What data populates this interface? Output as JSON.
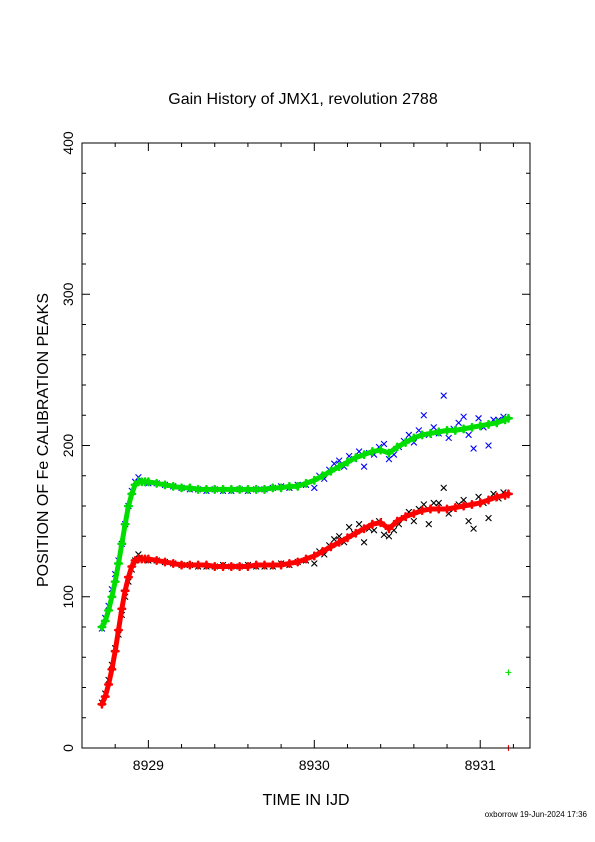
{
  "chart_data": {
    "type": "scatter",
    "title": "Gain History of JMX1, revolution 2788",
    "xlabel": "TIME IN IJD",
    "ylabel": "POSITION OF Fe CALIBRATION PEAKS",
    "xlim": [
      8928.6,
      8931.3
    ],
    "ylim": [
      0,
      400
    ],
    "x_ticks": [
      "8929",
      "8930",
      "8931"
    ],
    "y_ticks": [
      "0",
      "100",
      "200",
      "300",
      "400"
    ],
    "grid": false,
    "series": [
      {
        "marker": "x",
        "color": "#0000ff",
        "x": [
          8928.72,
          8928.74,
          8928.76,
          8928.78,
          8928.8,
          8928.82,
          8928.84,
          8928.86,
          8928.88,
          8928.9,
          8928.92,
          8928.94,
          8928.96,
          8929.0,
          8929.05,
          8929.1,
          8929.15,
          8929.2,
          8929.25,
          8929.3,
          8929.35,
          8929.4,
          8929.45,
          8929.5,
          8929.55,
          8929.6,
          8929.65,
          8929.7,
          8929.75,
          8929.8,
          8929.85,
          8929.9,
          8929.95,
          8930.0,
          8930.03,
          8930.06,
          8930.09,
          8930.12,
          8930.15,
          8930.18,
          8930.21,
          8930.24,
          8930.27,
          8930.3,
          8930.33,
          8930.36,
          8930.39,
          8930.42,
          8930.45,
          8930.48,
          8930.51,
          8930.54,
          8930.57,
          8930.6,
          8930.63,
          8930.66,
          8930.69,
          8930.72,
          8930.75,
          8930.78,
          8930.81,
          8930.84,
          8930.87,
          8930.9,
          8930.93,
          8930.96,
          8930.99,
          8931.02,
          8931.05,
          8931.08,
          8931.11,
          8931.14
        ],
        "y": [
          79,
          86,
          94,
          105,
          115,
          124,
          135,
          148,
          160,
          170,
          176,
          179,
          176,
          175,
          175,
          174,
          173,
          172,
          171,
          171,
          170,
          171,
          170,
          170,
          171,
          170,
          171,
          171,
          172,
          173,
          172,
          174,
          174,
          172,
          180,
          178,
          184,
          188,
          190,
          186,
          193,
          191,
          196,
          186,
          195,
          194,
          199,
          201,
          191,
          194,
          199,
          203,
          207,
          202,
          210,
          220,
          207,
          212,
          208,
          233,
          205,
          211,
          215,
          219,
          207,
          198,
          218,
          212,
          200,
          217,
          217,
          219
        ]
      },
      {
        "marker": "+",
        "color": "#00dd00",
        "x": [
          8928.72,
          8928.74,
          8928.76,
          8928.78,
          8928.8,
          8928.82,
          8928.84,
          8928.86,
          8928.88,
          8928.9,
          8928.92,
          8928.94,
          8928.96,
          8928.98,
          8929.0,
          8929.05,
          8929.1,
          8929.15,
          8929.2,
          8929.25,
          8929.3,
          8929.35,
          8929.4,
          8929.45,
          8929.5,
          8929.55,
          8929.6,
          8929.65,
          8929.7,
          8929.75,
          8929.8,
          8929.85,
          8929.9,
          8929.95,
          8930.0,
          8930.05,
          8930.1,
          8930.15,
          8930.2,
          8930.25,
          8930.3,
          8930.35,
          8930.4,
          8930.45,
          8930.5,
          8930.55,
          8930.6,
          8930.65,
          8930.7,
          8930.75,
          8930.8,
          8930.85,
          8930.9,
          8930.95,
          8931.0,
          8931.05,
          8931.1,
          8931.15,
          8931.17
        ],
        "y": [
          80,
          84,
          91,
          100,
          110,
          122,
          135,
          148,
          160,
          168,
          174,
          176,
          176,
          176,
          176,
          175,
          174,
          173,
          172,
          172,
          171,
          171,
          171,
          171,
          171,
          171,
          171,
          171,
          171,
          172,
          172,
          173,
          173,
          175,
          177,
          180,
          183,
          186,
          189,
          192,
          194,
          196,
          197,
          195,
          199,
          202,
          205,
          207,
          208,
          209,
          210,
          210,
          211,
          212,
          213,
          214,
          215,
          217,
          218
        ]
      },
      {
        "marker": "x",
        "color": "#000000",
        "x": [
          8928.72,
          8928.74,
          8928.76,
          8928.78,
          8928.8,
          8928.82,
          8928.84,
          8928.86,
          8928.88,
          8928.9,
          8928.92,
          8928.94,
          8928.96,
          8929.0,
          8929.05,
          8929.1,
          8929.15,
          8929.2,
          8929.25,
          8929.3,
          8929.35,
          8929.4,
          8929.45,
          8929.5,
          8929.55,
          8929.6,
          8929.65,
          8929.7,
          8929.75,
          8929.8,
          8929.85,
          8929.9,
          8929.95,
          8930.0,
          8930.03,
          8930.06,
          8930.09,
          8930.12,
          8930.15,
          8930.18,
          8930.21,
          8930.24,
          8930.27,
          8930.3,
          8930.33,
          8930.36,
          8930.39,
          8930.42,
          8930.45,
          8930.48,
          8930.51,
          8930.54,
          8930.57,
          8930.6,
          8930.63,
          8930.66,
          8930.69,
          8930.72,
          8930.75,
          8930.78,
          8930.81,
          8930.84,
          8930.87,
          8930.9,
          8930.93,
          8930.96,
          8930.99,
          8931.02,
          8931.05,
          8931.08,
          8931.11,
          8931.14
        ],
        "y": [
          30,
          36,
          45,
          55,
          66,
          75,
          88,
          100,
          110,
          118,
          124,
          128,
          125,
          124,
          124,
          123,
          122,
          121,
          121,
          120,
          120,
          120,
          121,
          120,
          120,
          121,
          120,
          120,
          120,
          122,
          121,
          123,
          124,
          122,
          130,
          128,
          134,
          138,
          140,
          136,
          146,
          142,
          148,
          136,
          145,
          144,
          150,
          141,
          140,
          144,
          148,
          152,
          156,
          150,
          158,
          161,
          148,
          162,
          162,
          172,
          155,
          158,
          161,
          164,
          150,
          145,
          166,
          162,
          152,
          168,
          165,
          169
        ]
      },
      {
        "marker": "+",
        "color": "#ff0000",
        "x": [
          8928.72,
          8928.74,
          8928.76,
          8928.78,
          8928.8,
          8928.82,
          8928.84,
          8928.86,
          8928.88,
          8928.9,
          8928.92,
          8928.94,
          8928.96,
          8928.98,
          8929.0,
          8929.05,
          8929.1,
          8929.15,
          8929.2,
          8929.25,
          8929.3,
          8929.35,
          8929.4,
          8929.45,
          8929.5,
          8929.55,
          8929.6,
          8929.65,
          8929.7,
          8929.75,
          8929.8,
          8929.85,
          8929.9,
          8929.95,
          8930.0,
          8930.05,
          8930.1,
          8930.15,
          8930.2,
          8930.25,
          8930.3,
          8930.35,
          8930.4,
          8930.45,
          8930.5,
          8930.55,
          8930.6,
          8930.65,
          8930.7,
          8930.75,
          8930.8,
          8930.85,
          8930.9,
          8930.95,
          8931.0,
          8931.05,
          8931.1,
          8931.15,
          8931.17
        ],
        "y": [
          29,
          34,
          42,
          52,
          64,
          78,
          92,
          104,
          113,
          120,
          124,
          125,
          125,
          125,
          125,
          124,
          123,
          122,
          121,
          121,
          121,
          121,
          120,
          120,
          120,
          120,
          120,
          121,
          121,
          121,
          121,
          122,
          123,
          125,
          127,
          130,
          133,
          136,
          139,
          142,
          145,
          148,
          149,
          145,
          150,
          153,
          155,
          157,
          158,
          158,
          158,
          159,
          160,
          161,
          162,
          164,
          166,
          167,
          168
        ]
      },
      {
        "marker": "+",
        "color": "#00dd00",
        "x": [
          8931.17
        ],
        "y": [
          50
        ]
      },
      {
        "marker": "+",
        "color": "#ff0000",
        "x": [
          8931.17
        ],
        "y": [
          0
        ]
      }
    ]
  },
  "footer": {
    "credit": "oxborrow 19-Jun-2024 17:36"
  }
}
